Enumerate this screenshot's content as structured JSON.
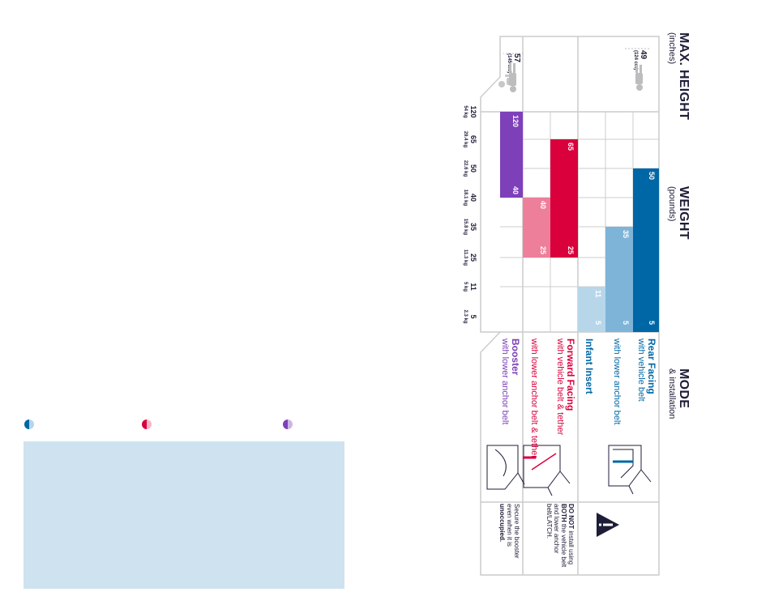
{
  "headers": {
    "mode": "MODE",
    "mode_sub": "& installation",
    "weight": "WEIGHT",
    "weight_sub": "(pounds)",
    "height": "MAX. HEIGHT",
    "height_sub": "(inches)"
  },
  "colors": {
    "rear_dark": "#0067a6",
    "rear_mid": "#7eb4d8",
    "rear_light": "#b7d6ea",
    "forward_dark": "#d9003c",
    "forward_light": "#ee7f9a",
    "booster": "#7d40b9",
    "panel": "#cee3ef",
    "grid": "#cccccc"
  },
  "warnings": {
    "rear_forward": {
      "bold1": "DO NOT",
      "t1": " install using ",
      "bold2": "BOTH",
      "t2": " the vehicle belt and lower anchor belt/LATCH."
    },
    "booster": {
      "t1": "Secure the booster even when it is ",
      "bold1": "unoccupied."
    }
  },
  "modes": {
    "rear_title": "Rear Facing",
    "rear_belt": "with vehicle belt",
    "rear_anchor": "with lower anchor belt",
    "infant": "Infant Insert",
    "forward_title": "Forward Facing",
    "forward_belt": "with vehicle belt & tether",
    "forward_anchor": "with lower anchor belt & tether",
    "booster_title": "Booster",
    "booster_anchor": "with lower anchor belt"
  },
  "chart_data": {
    "type": "bar",
    "orientation": "horizontal-range",
    "xlabel": "WEIGHT (pounds)",
    "ticks": [
      {
        "lb": "5",
        "kg": "2.3 kg"
      },
      {
        "lb": "11",
        "kg": "5 kg"
      },
      {
        "lb": "25",
        "kg": "11.3 kg"
      },
      {
        "lb": "35",
        "kg": "15.8 kg"
      },
      {
        "lb": "40",
        "kg": "18.1 kg"
      },
      {
        "lb": "50",
        "kg": "22.6 kg"
      },
      {
        "lb": "65",
        "kg": "29.4 kg"
      },
      {
        "lb": "120",
        "kg": "54 kg"
      }
    ],
    "series": [
      {
        "mode": "Rear Facing with vehicle belt",
        "min": 5,
        "max": 50,
        "min_label": "5",
        "max_label": "50"
      },
      {
        "mode": "Rear Facing with lower anchor belt",
        "min": 5,
        "max": 35,
        "min_label": "5",
        "max_label": "35"
      },
      {
        "mode": "Infant Insert",
        "min": 5,
        "max": 11,
        "min_label": "5",
        "max_label": "11"
      },
      {
        "mode": "Forward Facing with vehicle belt & tether",
        "min": 25,
        "max": 65,
        "min_label": "25",
        "max_label": "65"
      },
      {
        "mode": "Forward Facing with lower anchor belt & tether",
        "min": 25,
        "max": 40,
        "min_label": "25",
        "max_label": "40"
      },
      {
        "mode": "Booster with lower anchor belt",
        "min": 40,
        "max": 120,
        "min_label": "40",
        "max_label": "120"
      }
    ],
    "max_height": [
      {
        "group": "harness",
        "inches": "49",
        "cm": "(124 cm)"
      },
      {
        "group": "booster",
        "inches": "57",
        "cm": "(145 cm)"
      }
    ]
  }
}
